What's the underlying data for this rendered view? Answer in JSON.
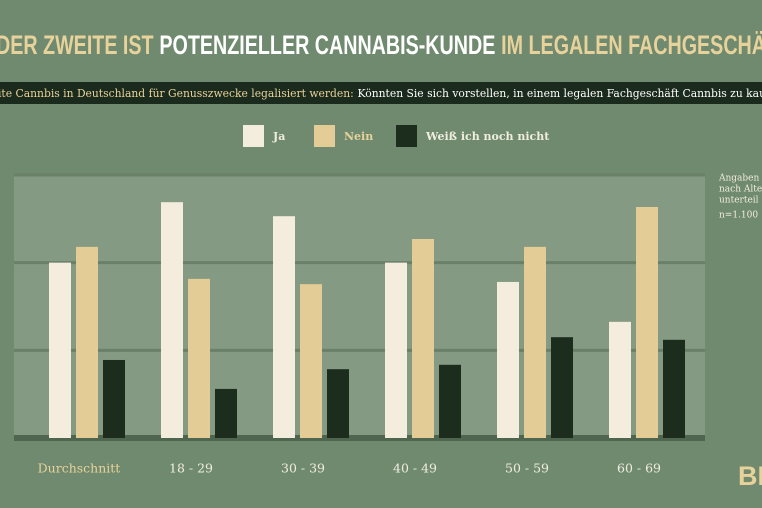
{
  "chart_data": {
    "type": "bar",
    "title_parts": [
      "DER ZWEITE IST",
      "POTENZIELLER CANNABIS-KUNDE",
      "IM LEGALEN FACHGESCHÄ"
    ],
    "subtitle_parts": [
      "ite Cannbis in Deutschland für Genusszwecke legalisiert werden:",
      "Könnten Sie sich vorstellen, in einem legalen Fachgeschäft Cannbis zu kau"
    ],
    "notes": [
      "Angaben",
      "nach Alte",
      "unterteil",
      "n=1.100"
    ],
    "logo": "BLO",
    "categories": [
      "Durchschnitt",
      "18 - 29",
      "30 - 39",
      "40 - 49",
      "50 - 59",
      "60 - 69"
    ],
    "series": [
      {
        "name": "Ja",
        "color": "#f4ecdc",
        "values": [
          40,
          53.8,
          50.6,
          40,
          35.6,
          26.5
        ]
      },
      {
        "name": "Nein",
        "color": "#e3cc95",
        "values": [
          43.6,
          36.3,
          35.1,
          45.4,
          43.6,
          52.7
        ]
      },
      {
        "name": "Weiß ich noch nicht",
        "color": "#1c2d1e",
        "values": [
          17.8,
          11.2,
          15.7,
          16.7,
          23.0,
          22.4
        ]
      }
    ],
    "ylim": [
      0,
      60
    ],
    "yticks": [
      0,
      20,
      40,
      60
    ],
    "grid": true
  }
}
